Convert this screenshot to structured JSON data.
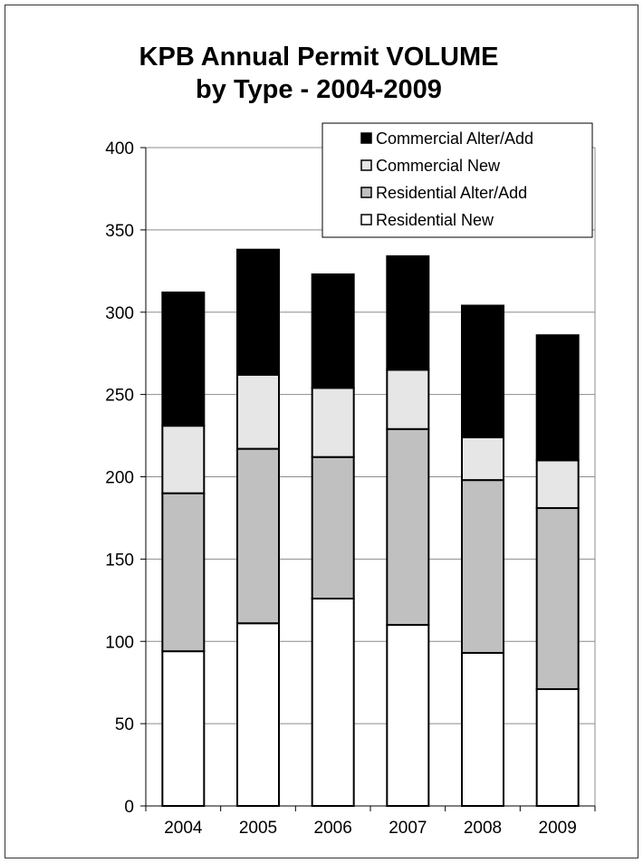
{
  "chart_data": {
    "type": "bar",
    "stacked": true,
    "title_lines": [
      "KPB Annual Permit VOLUME",
      "by Type - 2004-2009"
    ],
    "xlabel": "",
    "ylabel": "",
    "categories": [
      "2004",
      "2005",
      "2006",
      "2007",
      "2008",
      "2009"
    ],
    "ylim": [
      0,
      400
    ],
    "yticks": [
      0,
      50,
      100,
      150,
      200,
      250,
      300,
      350,
      400
    ],
    "grid": true,
    "legend_position": "top-right",
    "series": [
      {
        "name": "Residential New",
        "color": "#ffffff",
        "values": [
          94,
          111,
          126,
          110,
          93,
          71
        ]
      },
      {
        "name": "Residential Alter/Add",
        "color": "#c0c0c0",
        "values": [
          96,
          106,
          86,
          119,
          105,
          110
        ]
      },
      {
        "name": "Commercial New",
        "color": "#e6e6e6",
        "values": [
          41,
          45,
          42,
          36,
          26,
          29
        ]
      },
      {
        "name": "Commercial Alter/Add",
        "color": "#000000",
        "values": [
          81,
          76,
          69,
          69,
          80,
          76
        ]
      }
    ],
    "legend_order": [
      "Commercial Alter/Add",
      "Commercial New",
      "Residential Alter/Add",
      "Residential New"
    ]
  }
}
